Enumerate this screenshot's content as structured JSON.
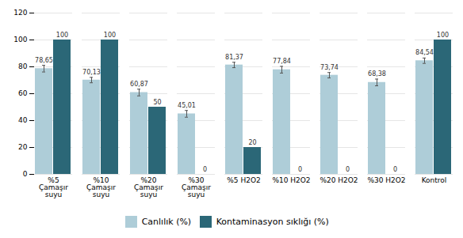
{
  "chart_data": {
    "type": "bar",
    "categories": [
      "%5\nÇamaşır\nsuyu",
      "%10\nÇamaşır\nsuyu",
      "%20\nÇamaşır\nsuyu",
      "%30\nÇamaşır\nsuyu",
      "%5 H2O2",
      "%10 H2O2",
      "%20 H2O2",
      "%30 H2O2",
      "Kontrol"
    ],
    "series": [
      {
        "name": "Canlılık (%)",
        "color": "#aecdd8",
        "values": [
          78.65,
          70.13,
          60.87,
          45.01,
          81.37,
          77.84,
          73.74,
          68.38,
          84.54
        ],
        "value_labels": [
          "78,65",
          "70,13",
          "60,87",
          "45,01",
          "81,37",
          "77,84",
          "73,74",
          "68,38",
          "84,54"
        ],
        "errors": [
          2.5,
          2.0,
          2.5,
          2.5,
          2.0,
          2.5,
          2.0,
          2.5,
          2.0
        ]
      },
      {
        "name": "Kontaminasyon sıklığı (%)",
        "color": "#2b6777",
        "values": [
          100,
          100,
          50,
          0,
          20,
          0,
          0,
          0,
          100
        ]
      }
    ],
    "ylim": [
      0,
      120
    ],
    "yticks": [
      0,
      20,
      40,
      60,
      80,
      100,
      120
    ],
    "grid": true,
    "legend": "bottom",
    "data_labels": true
  }
}
